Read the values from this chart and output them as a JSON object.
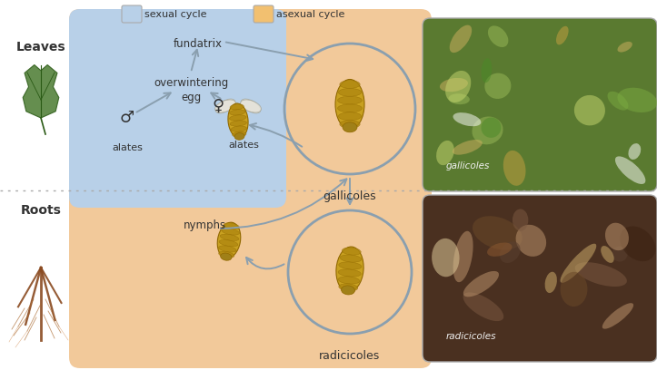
{
  "fig_width": 7.23,
  "fig_height": 4.08,
  "dpi": 100,
  "bg_color": "#ffffff",
  "sexual_cycle_color": "#b8d0e8",
  "asexual_cycle_color": "#f2c99a",
  "circle_edge_color": "#8a9faf",
  "arrow_color": "#8a9faf",
  "text_color": "#333333",
  "legend_sexual_color": "#b8d0e8",
  "legend_asexual_color": "#f2c070",
  "legend_edge_color": "#aaaaaa",
  "separator_color": "#aaaaaa",
  "insect_body": "#c8a020",
  "insect_seg": "#b08810",
  "insect_edge": "#906800",
  "labels": {
    "leaves": "Leaves",
    "roots": "Roots",
    "fundatrix": "fundatrix",
    "overwintering_egg": "overwintering\negg",
    "male_alates": "alates",
    "female_alates": "alates",
    "gallicoles": "gallicoles",
    "radicicoles": "radicicoles",
    "nymphs": "nymphs",
    "sexual_cycle": "sexual cycle",
    "asexual_cycle": "asexual cycle",
    "male_symbol": "♂",
    "female_symbol": "♀"
  }
}
